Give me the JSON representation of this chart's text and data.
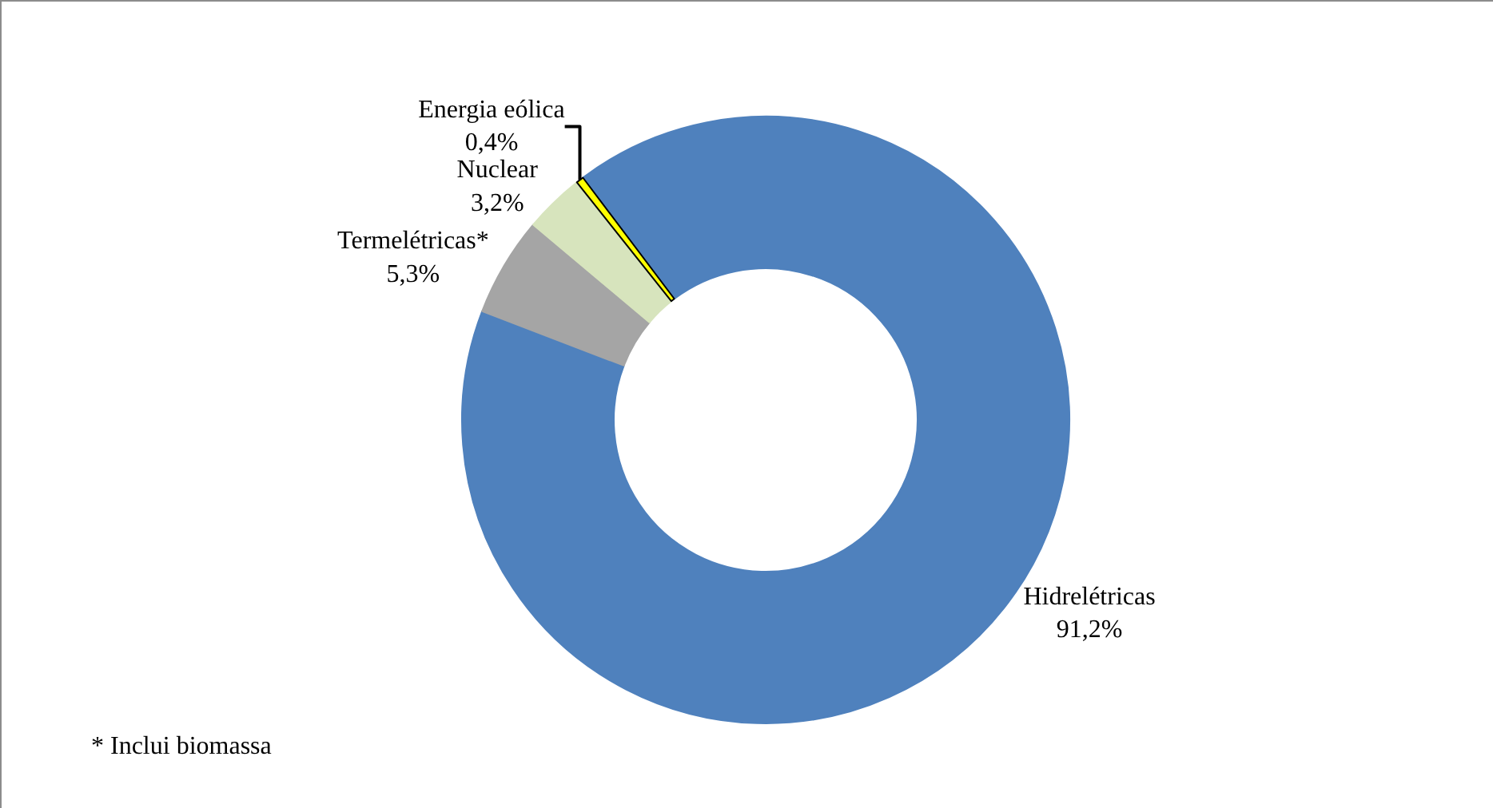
{
  "chart_data": {
    "type": "donut",
    "categories": [
      "Hidrelétricas",
      "Termelétricas*",
      "Nuclear",
      "Energia eólica"
    ],
    "values": [
      91.2,
      5.3,
      3.2,
      0.4
    ],
    "value_labels": [
      "91,2%",
      "5,3%",
      "3,2%",
      "0,4%"
    ],
    "colors": [
      "#4f81bd",
      "#a5a5a5",
      "#d7e4bd",
      "#ffff00"
    ],
    "legend": false,
    "annotations": [
      "* Inclui biomassa"
    ]
  }
}
